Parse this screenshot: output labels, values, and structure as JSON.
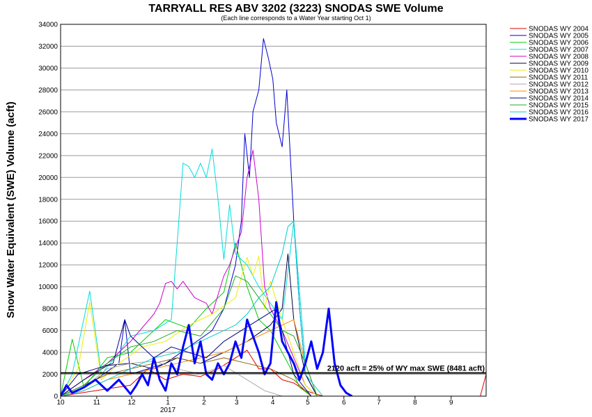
{
  "chart_data": {
    "type": "line",
    "title": "TARRYALL RES ABV 3202 (3223) SNODAS SWE Volume",
    "subtitle": "(Each line corresponds to a Water Year starting Oct 1)",
    "ylabel": "Snow Water Equivalent (SWE) Volume (acft)",
    "xlabel": "",
    "xlim": [
      0,
      365
    ],
    "ylim": [
      0,
      34000
    ],
    "y_ticks": [
      0,
      2000,
      4000,
      6000,
      8000,
      10000,
      12000,
      14000,
      16000,
      18000,
      20000,
      22000,
      24000,
      26000,
      28000,
      30000,
      32000,
      34000
    ],
    "y_tick_labels": [
      "0",
      "2000",
      "4000",
      "6000",
      "8000",
      "10000",
      "12000",
      "14000",
      "16000",
      "18000",
      "20000",
      "22000",
      "24000",
      "26000",
      "28000",
      "30000",
      "32000",
      "34000"
    ],
    "x_ticks": [
      0,
      31,
      61,
      92,
      123,
      151,
      182,
      212,
      243,
      273,
      304,
      335
    ],
    "x_tick_labels": [
      "10",
      "11",
      "12",
      "1",
      "2",
      "3",
      "4",
      "5",
      "6",
      "7",
      "8",
      "9"
    ],
    "x_year_label": "2017",
    "x_year_day": 92,
    "grid": true,
    "legend_position": "right",
    "threshold": {
      "value": 2120,
      "label": "2120 acft = 25% of WY max SWE (8481 acft)"
    },
    "series": [
      {
        "name": "SNODAS WY 2004",
        "color": "#e00000",
        "width": 1,
        "x": [
          0,
          30,
          60,
          75,
          90,
          105,
          120,
          135,
          150,
          160,
          170,
          180,
          190,
          200,
          210,
          225,
          360,
          365
        ],
        "y": [
          0,
          500,
          1000,
          2500,
          1500,
          2000,
          1800,
          2500,
          3500,
          4200,
          2500,
          2500,
          1500,
          1200,
          500,
          0,
          0,
          2000
        ]
      },
      {
        "name": "SNODAS WY 2005",
        "color": "#0000cc",
        "width": 1,
        "x": [
          0,
          30,
          50,
          55,
          60,
          90,
          110,
          130,
          140,
          150,
          155,
          158,
          162,
          165,
          170,
          174,
          178,
          182,
          185,
          190,
          194,
          197,
          200,
          205,
          210,
          220
        ],
        "y": [
          0,
          1500,
          3000,
          7000,
          2000,
          3000,
          4500,
          6000,
          8000,
          12000,
          16000,
          24000,
          20000,
          26000,
          28000,
          32700,
          31000,
          29000,
          25000,
          22800,
          28000,
          22000,
          16000,
          8000,
          2000,
          0
        ]
      },
      {
        "name": "SNODAS WY 2006",
        "color": "#00cc00",
        "width": 1,
        "x": [
          0,
          10,
          20,
          40,
          60,
          75,
          90,
          110,
          125,
          140,
          150,
          160,
          170,
          180,
          190,
          200,
          205,
          215
        ],
        "y": [
          0,
          5200,
          800,
          3500,
          4000,
          5500,
          7000,
          6200,
          8000,
          9500,
          14000,
          10000,
          7000,
          6000,
          4000,
          2000,
          800,
          0
        ]
      },
      {
        "name": "SNODAS WY 2007",
        "color": "#00dddd",
        "width": 1,
        "x": [
          0,
          10,
          25,
          35,
          50,
          60,
          80,
          95,
          100,
          105,
          110,
          115,
          120,
          125,
          130,
          135,
          140,
          145,
          150,
          160,
          170,
          180,
          190,
          200,
          210,
          220
        ],
        "y": [
          0,
          2000,
          9600,
          2000,
          4000,
          5500,
          6000,
          7000,
          14000,
          21300,
          21000,
          20000,
          21300,
          20000,
          22600,
          18000,
          12500,
          17500,
          13000,
          12000,
          10000,
          8500,
          7000,
          16000,
          3000,
          0
        ]
      },
      {
        "name": "SNODAS WY 2008",
        "color": "#cc00cc",
        "width": 1,
        "x": [
          0,
          20,
          40,
          60,
          80,
          85,
          90,
          95,
          100,
          105,
          115,
          125,
          130,
          140,
          145,
          150,
          155,
          160,
          165,
          170,
          175,
          180,
          190,
          200,
          210,
          220
        ],
        "y": [
          0,
          1500,
          3000,
          5000,
          7500,
          8500,
          10300,
          10500,
          9800,
          10500,
          9000,
          8500,
          7500,
          11000,
          12000,
          13600,
          15000,
          20000,
          22500,
          18000,
          10000,
          8000,
          6000,
          3500,
          1000,
          0
        ]
      },
      {
        "name": "SNODAS WY 2009",
        "color": "#000044",
        "width": 1,
        "x": [
          0,
          20,
          40,
          60,
          80,
          100,
          120,
          140,
          160,
          180,
          190,
          195,
          200,
          210,
          220
        ],
        "y": [
          0,
          1500,
          2800,
          3000,
          2500,
          3500,
          3000,
          4000,
          5000,
          6500,
          8000,
          13000,
          7000,
          2000,
          0
        ]
      },
      {
        "name": "SNODAS WY 2010",
        "color": "#eeee00",
        "width": 1,
        "x": [
          0,
          15,
          25,
          35,
          50,
          70,
          90,
          110,
          130,
          150,
          160,
          165,
          170,
          175,
          180,
          190,
          200,
          210,
          220
        ],
        "y": [
          0,
          2500,
          8600,
          1500,
          3000,
          4500,
          5000,
          6500,
          7500,
          9000,
          12700,
          11000,
          12800,
          8000,
          10500,
          7000,
          4000,
          1000,
          0
        ]
      },
      {
        "name": "SNODAS WY 2011",
        "color": "#886600",
        "width": 1,
        "x": [
          0,
          20,
          40,
          60,
          80,
          100,
          120,
          140,
          160,
          180,
          200,
          215
        ],
        "y": [
          0,
          1000,
          2000,
          2500,
          3000,
          3500,
          3000,
          3500,
          3000,
          2500,
          1500,
          0
        ]
      },
      {
        "name": "SNODAS WY 2012",
        "color": "#aaaaaa",
        "width": 1,
        "x": [
          0,
          20,
          40,
          60,
          80,
          100,
          120,
          140,
          160,
          175,
          190
        ],
        "y": [
          0,
          800,
          2500,
          3000,
          3200,
          2500,
          2000,
          2800,
          1500,
          500,
          0
        ]
      },
      {
        "name": "SNODAS WY 2013",
        "color": "#ff8800",
        "width": 1,
        "x": [
          0,
          20,
          40,
          60,
          80,
          100,
          120,
          140,
          160,
          180,
          200,
          210,
          220
        ],
        "y": [
          0,
          500,
          1500,
          2000,
          2500,
          3000,
          3500,
          4000,
          5000,
          6000,
          7000,
          3000,
          0
        ]
      },
      {
        "name": "SNODAS WY 2014",
        "color": "#000088",
        "width": 1,
        "x": [
          0,
          15,
          30,
          45,
          55,
          60,
          70,
          80,
          95,
          110,
          125,
          140,
          155,
          170,
          185,
          200,
          215
        ],
        "y": [
          0,
          2000,
          2500,
          3000,
          7000,
          5500,
          4500,
          3500,
          4500,
          4000,
          3500,
          5000,
          6000,
          7000,
          8000,
          2000,
          0
        ]
      },
      {
        "name": "SNODAS WY 2015",
        "color": "#22aa22",
        "width": 1,
        "x": [
          0,
          20,
          40,
          60,
          80,
          100,
          120,
          140,
          150,
          160,
          170,
          180,
          190,
          200,
          210,
          220
        ],
        "y": [
          0,
          1000,
          3000,
          4500,
          5000,
          6000,
          5500,
          8000,
          11000,
          10500,
          9000,
          7500,
          6000,
          5500,
          3000,
          0
        ]
      },
      {
        "name": "SNODAS WY 2016",
        "color": "#00cccc",
        "width": 1,
        "x": [
          0,
          20,
          40,
          60,
          80,
          100,
          120,
          140,
          150,
          160,
          170,
          180,
          190,
          195,
          200,
          205,
          210,
          225
        ],
        "y": [
          0,
          500,
          1500,
          2500,
          3500,
          4000,
          5000,
          6000,
          6500,
          7500,
          9000,
          10000,
          13000,
          15500,
          16000,
          8000,
          2000,
          0
        ]
      },
      {
        "name": "SNODAS WY 2017",
        "color": "#0000ff",
        "width": 3,
        "x": [
          0,
          5,
          10,
          20,
          30,
          40,
          50,
          60,
          65,
          70,
          75,
          80,
          85,
          90,
          95,
          100,
          105,
          110,
          115,
          120,
          125,
          130,
          135,
          140,
          145,
          150,
          155,
          160,
          165,
          170,
          175,
          180,
          185,
          190,
          195,
          200,
          205,
          210,
          215,
          220,
          225,
          230,
          235,
          240,
          245,
          250
        ],
        "y": [
          0,
          1000,
          300,
          800,
          1500,
          500,
          1500,
          200,
          1000,
          2000,
          1000,
          3500,
          1500,
          500,
          3000,
          2000,
          4500,
          6500,
          3000,
          5000,
          2000,
          1500,
          3000,
          2000,
          3000,
          5000,
          3500,
          7000,
          5500,
          4000,
          2000,
          3000,
          8600,
          5000,
          4000,
          3000,
          1500,
          3000,
          5000,
          2500,
          4000,
          8000,
          3000,
          1000,
          300,
          0
        ]
      }
    ]
  }
}
